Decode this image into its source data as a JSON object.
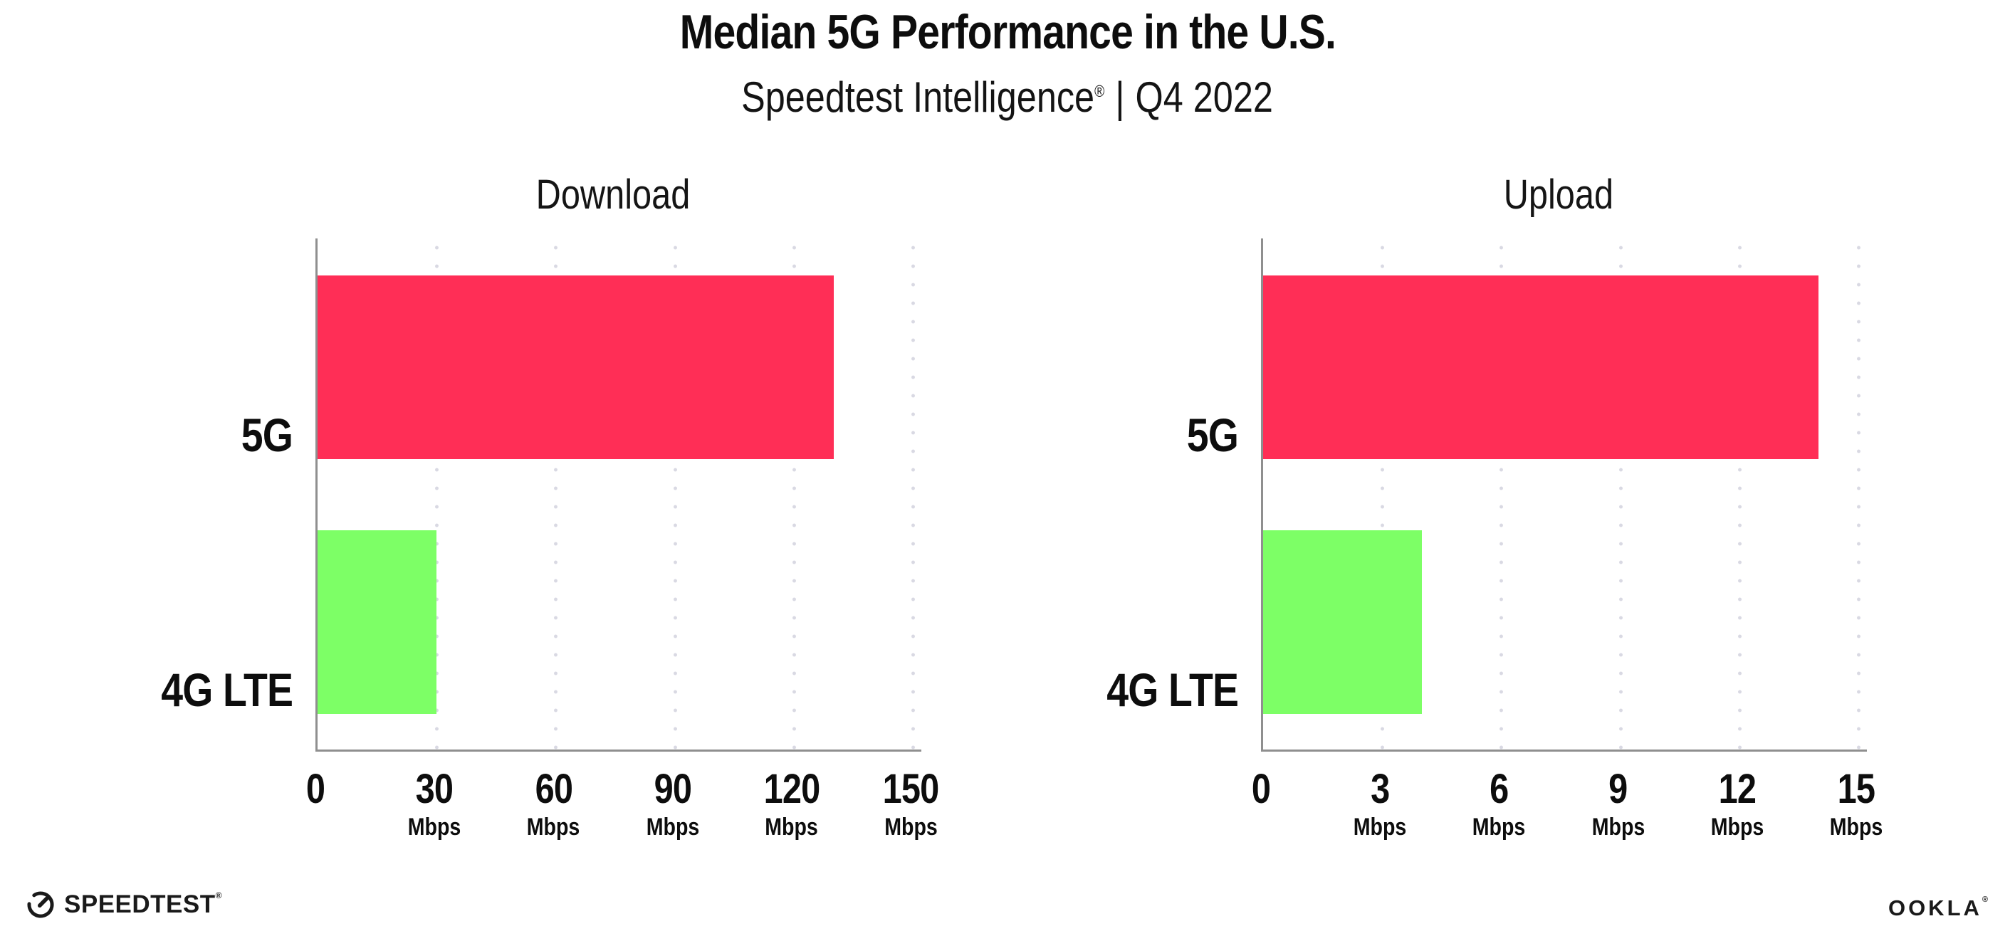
{
  "header": {
    "title": "Median 5G Performance in the U.S.",
    "subtitle_brand": "Speedtest Intelligence",
    "subtitle_reg": "®",
    "subtitle_separator": "|",
    "subtitle_period": "Q4 2022"
  },
  "chart_data": [
    {
      "type": "bar",
      "orientation": "horizontal",
      "title": "Download",
      "categories": [
        "5G",
        "4G LTE"
      ],
      "values": [
        130,
        30
      ],
      "unit": "Mbps",
      "xlim": [
        0,
        150
      ],
      "xticks": [
        0,
        30,
        60,
        90,
        120,
        150
      ],
      "ticks": [
        {
          "label": "0",
          "unit": ""
        },
        {
          "label": "30",
          "unit": "Mbps"
        },
        {
          "label": "60",
          "unit": "Mbps"
        },
        {
          "label": "90",
          "unit": "Mbps"
        },
        {
          "label": "120",
          "unit": "Mbps"
        },
        {
          "label": "150",
          "unit": "Mbps"
        }
      ],
      "bar_colors": [
        "#FF2E56",
        "#7DFF66"
      ],
      "grid": "dotted-vertical",
      "legend": "none"
    },
    {
      "type": "bar",
      "orientation": "horizontal",
      "title": "Upload",
      "categories": [
        "5G",
        "4G LTE"
      ],
      "values": [
        14,
        4
      ],
      "unit": "Mbps",
      "xlim": [
        0,
        15
      ],
      "xticks": [
        0,
        3,
        6,
        9,
        12,
        15
      ],
      "ticks": [
        {
          "label": "0",
          "unit": ""
        },
        {
          "label": "3",
          "unit": "Mbps"
        },
        {
          "label": "6",
          "unit": "Mbps"
        },
        {
          "label": "9",
          "unit": "Mbps"
        },
        {
          "label": "12",
          "unit": "Mbps"
        },
        {
          "label": "15",
          "unit": "Mbps"
        }
      ],
      "bar_colors": [
        "#FF2E56",
        "#7DFF66"
      ],
      "grid": "dotted-vertical",
      "legend": "none"
    }
  ],
  "footer": {
    "speedtest_logo_text": "SPEEDTEST",
    "speedtest_reg": "®",
    "ookla_logo_text": "OOKLA",
    "ookla_reg": "®"
  },
  "colors": {
    "bar_5g": "#FF2E56",
    "bar_4g_lte": "#7DFF66",
    "axis": "#8F8F8F",
    "gridline": "#D9D9E3",
    "text": "#0D0D0D"
  }
}
